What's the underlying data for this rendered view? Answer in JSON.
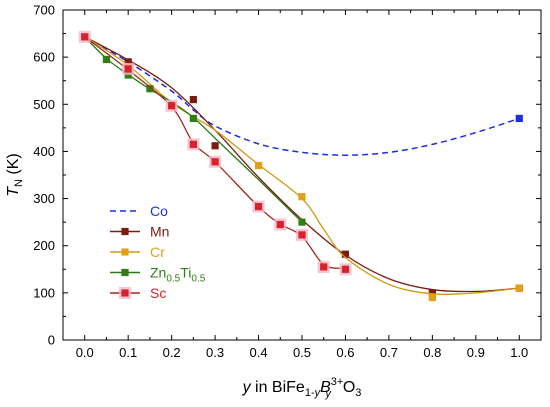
{
  "chart_data": {
    "type": "line",
    "xlim": [
      -0.05,
      1.05
    ],
    "ylim": [
      0,
      700
    ],
    "xticks": [
      "0.0",
      "0.1",
      "0.2",
      "0.3",
      "0.4",
      "0.5",
      "0.6",
      "0.7",
      "0.8",
      "0.9",
      "1.0"
    ],
    "yticks": [
      "0",
      "100",
      "200",
      "300",
      "400",
      "500",
      "600",
      "700"
    ],
    "xlabel": {
      "y": "y",
      "in": " in BiFe",
      "sub1": "1-",
      "sub1_italic": "y",
      "B": "B",
      "sup": "3+",
      "sub2": "y",
      "tail": "O",
      "tail_sub": "3"
    },
    "ylabel": {
      "main": "T",
      "sub": "N",
      "unit": " (K)"
    },
    "grid": false,
    "legend_position": "left-center",
    "series": [
      {
        "name": "Co",
        "color": "#1a2fe0",
        "marker_color": "#1a2fe0",
        "dashed": true,
        "points": [
          [
            0.0,
            643
          ],
          [
            1.0,
            470
          ]
        ],
        "curve": [
          [
            0.0,
            643
          ],
          [
            0.1,
            590
          ],
          [
            0.2,
            528
          ],
          [
            0.25,
            488
          ],
          [
            0.3,
            454
          ],
          [
            0.4,
            416
          ],
          [
            0.5,
            398
          ],
          [
            0.6,
            392
          ],
          [
            0.7,
            398
          ],
          [
            0.8,
            415
          ],
          [
            0.9,
            440
          ],
          [
            1.0,
            470
          ]
        ]
      },
      {
        "name": "Mn",
        "color": "#7a1c12",
        "marker_color": "#7a1c12",
        "dashed": false,
        "points": [
          [
            0.0,
            643
          ],
          [
            0.1,
            590
          ],
          [
            0.25,
            510
          ],
          [
            0.3,
            412
          ],
          [
            0.6,
            182
          ],
          [
            0.8,
            100
          ],
          [
            1.0,
            110
          ]
        ],
        "curve": [
          [
            0.0,
            643
          ],
          [
            0.1,
            594
          ],
          [
            0.2,
            535
          ],
          [
            0.3,
            445
          ],
          [
            0.4,
            345
          ],
          [
            0.5,
            255
          ],
          [
            0.6,
            180
          ],
          [
            0.7,
            130
          ],
          [
            0.8,
            107
          ],
          [
            0.9,
            103
          ],
          [
            1.0,
            110
          ]
        ]
      },
      {
        "name": "Cr",
        "color": "#d09a12",
        "marker_color": "#e2a018",
        "dashed": false,
        "points": [
          [
            0.0,
            643
          ],
          [
            0.1,
            578
          ],
          [
            0.4,
            370
          ],
          [
            0.5,
            304
          ],
          [
            0.8,
            90
          ],
          [
            1.0,
            110
          ]
        ],
        "curve": [
          [
            0.0,
            643
          ],
          [
            0.1,
            583
          ],
          [
            0.2,
            503
          ],
          [
            0.3,
            445
          ],
          [
            0.4,
            372
          ],
          [
            0.5,
            300
          ],
          [
            0.55,
            235
          ],
          [
            0.6,
            175
          ],
          [
            0.7,
            118
          ],
          [
            0.8,
            98
          ],
          [
            0.9,
            100
          ],
          [
            1.0,
            110
          ]
        ]
      },
      {
        "name": "Zn",
        "name_sub1": "0.5",
        "name_mid": "Ti",
        "name_sub2": "0.5",
        "color": "#2a7a12",
        "marker_color": "#2f7f16",
        "dashed": false,
        "points": [
          [
            0.0,
            643
          ],
          [
            0.05,
            595
          ],
          [
            0.1,
            562
          ],
          [
            0.15,
            533
          ],
          [
            0.25,
            470
          ],
          [
            0.5,
            250
          ]
        ],
        "curve": [
          [
            0.0,
            643
          ],
          [
            0.05,
            597
          ],
          [
            0.1,
            563
          ],
          [
            0.15,
            532
          ],
          [
            0.2,
            505
          ],
          [
            0.25,
            472
          ],
          [
            0.3,
            428
          ],
          [
            0.4,
            340
          ],
          [
            0.5,
            250
          ]
        ]
      },
      {
        "name": "Sc",
        "color": "#a0281c",
        "marker_color": "#d8222a",
        "marker_halo": "#f4b6cc",
        "dashed": false,
        "points": [
          [
            0.0,
            643
          ],
          [
            0.1,
            575
          ],
          [
            0.2,
            497
          ],
          [
            0.25,
            415
          ],
          [
            0.3,
            378
          ],
          [
            0.4,
            283
          ],
          [
            0.45,
            245
          ],
          [
            0.5,
            223
          ],
          [
            0.55,
            155
          ],
          [
            0.6,
            150
          ]
        ],
        "curve": [
          [
            0.0,
            643
          ],
          [
            0.1,
            573
          ],
          [
            0.2,
            495
          ],
          [
            0.25,
            418
          ],
          [
            0.3,
            378
          ],
          [
            0.4,
            283
          ],
          [
            0.45,
            246
          ],
          [
            0.5,
            220
          ],
          [
            0.55,
            160
          ],
          [
            0.6,
            152
          ]
        ]
      }
    ]
  }
}
